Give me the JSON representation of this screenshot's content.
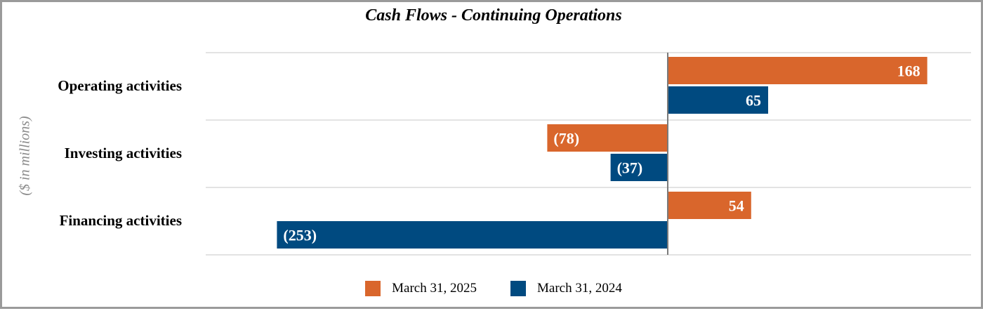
{
  "chart_data": {
    "type": "bar",
    "orientation": "horizontal",
    "title": "Cash Flows - Continuing Operations",
    "ylabel": "($ in millions)",
    "categories": [
      "Operating activities",
      "Investing activities",
      "Financing activities"
    ],
    "series": [
      {
        "name": "March 31, 2025",
        "color": "#d9662c",
        "values": [
          168,
          -78,
          54
        ],
        "labels": [
          "168",
          "(78)",
          "54"
        ]
      },
      {
        "name": "March 31, 2024",
        "color": "#004a80",
        "values": [
          65,
          -37,
          -253
        ],
        "labels": [
          "65",
          "(37)",
          "(253)"
        ]
      }
    ],
    "xlim": [
      -255,
      175
    ],
    "grid": true,
    "legend": "bottom"
  }
}
